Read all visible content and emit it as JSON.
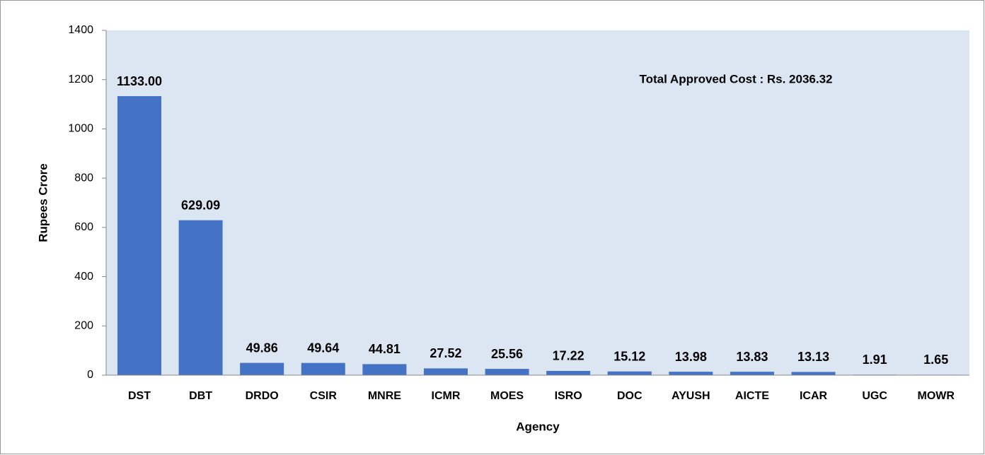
{
  "chart_data": {
    "type": "bar",
    "annotation": "Total Approved Cost : Rs. 2036.32",
    "x_label": "Agency",
    "y_label": "Rupees Crore",
    "categories": [
      "DST",
      "DBT",
      "DRDO",
      "CSIR",
      "MNRE",
      "ICMR",
      "MOES",
      "ISRO",
      "DOC",
      "AYUSH",
      "AICTE",
      "ICAR",
      "UGC",
      "MOWR"
    ],
    "values": [
      1133,
      629.09,
      49.86,
      49.64,
      44.81,
      27.52,
      25.56,
      17.22,
      15.12,
      13.98,
      13.83,
      13.13,
      1.91,
      1.65
    ],
    "value_labels": [
      "1133.00",
      "629.09",
      "49.86",
      "49.64",
      "44.81",
      "27.52",
      "25.56",
      "17.22",
      "15.12",
      "13.98",
      "13.83",
      "13.13",
      "1.91",
      "1.65"
    ],
    "color": "#4472c4",
    "ylim": [
      0,
      1400
    ],
    "yticks": [
      0,
      200,
      400,
      600,
      800,
      1000,
      1200,
      1400
    ],
    "grid": false
  }
}
